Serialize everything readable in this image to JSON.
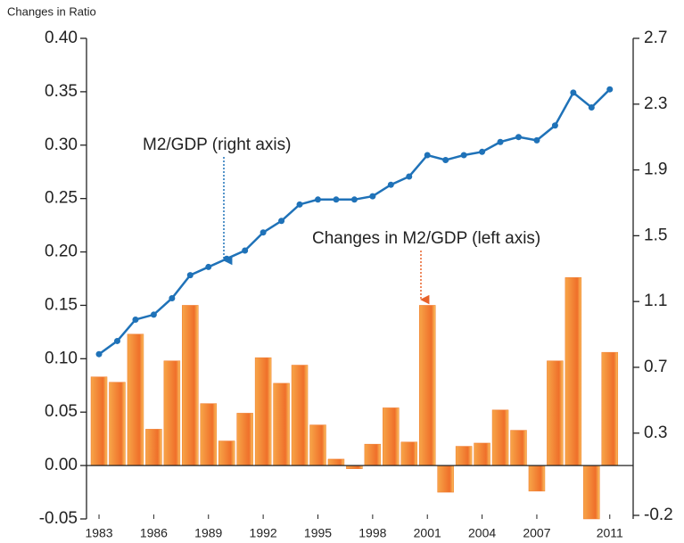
{
  "chart_data": {
    "type": "bar_line",
    "axis_title": "Changes in Ratio",
    "annotations": [
      "M2/GDP (right axis)",
      "Changes in M2/GDP (left axis)"
    ],
    "categories": [
      "1983",
      null,
      null,
      "1986",
      null,
      null,
      "1989",
      null,
      null,
      "1992",
      null,
      null,
      "1995",
      null,
      null,
      "1998",
      null,
      null,
      "2001",
      null,
      null,
      "2004",
      null,
      null,
      "2007",
      null,
      null,
      null,
      "2011"
    ],
    "series": [
      {
        "name": "Changes in M2/GDP",
        "type": "bar",
        "color": "#f07a2c",
        "axis": "y",
        "values": [
          0.083,
          0.078,
          0.123,
          0.034,
          0.098,
          0.15,
          0.058,
          0.023,
          0.049,
          0.101,
          0.077,
          0.094,
          0.038,
          0.006,
          -0.003,
          0.02,
          0.054,
          0.022,
          0.15,
          -0.025,
          0.018,
          0.021,
          0.052,
          0.033,
          -0.024,
          0.098,
          0.176,
          -0.05,
          0.106
        ]
      },
      {
        "name": "M2/GDP",
        "type": "line",
        "color": "#1f72b8",
        "axis": "y2",
        "values": [
          0.78,
          0.86,
          0.99,
          1.02,
          1.12,
          1.26,
          1.31,
          1.36,
          1.41,
          1.52,
          1.59,
          1.69,
          1.72,
          1.72,
          1.72,
          1.74,
          1.81,
          1.86,
          1.99,
          1.96,
          1.99,
          2.01,
          2.07,
          2.1,
          2.08,
          2.17,
          2.37,
          2.28,
          2.39
        ]
      }
    ],
    "ylim": [
      -0.05,
      0.4
    ],
    "yticks": [
      {
        "value": 0.4,
        "label": "0.40"
      },
      0.35,
      {
        "value": 0.3,
        "label": "0.30"
      },
      0.25,
      {
        "value": 0.2,
        "label": "0.20"
      },
      0.15,
      {
        "value": 0.1,
        "label": "0.10"
      },
      0.05,
      {
        "value": 0,
        "label": "0.00"
      },
      -0.05
    ],
    "y2lim": [
      -0.2,
      2.7
    ],
    "y2ticks": [
      2.7,
      2.3,
      1.9,
      1.5,
      1.1,
      0.7,
      0.3,
      -0.2
    ]
  }
}
